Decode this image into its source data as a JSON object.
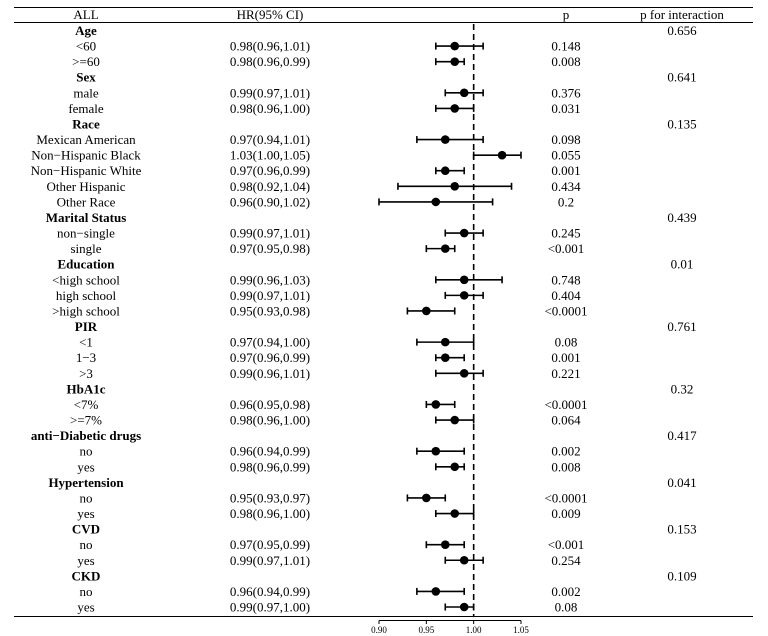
{
  "chart_data": {
    "type": "forest",
    "columns": {
      "subgroup": "ALL",
      "hr": "HR(95% CI)",
      "p": "p",
      "p_interaction": "p for interaction"
    },
    "x_ticks": [
      0.9,
      0.95,
      1.0,
      1.05
    ],
    "x_tick_labels": [
      "0.90",
      "0.95",
      "1.00",
      "1.05"
    ],
    "xlim": [
      0.9,
      1.05
    ],
    "reference_line": 1.0,
    "rows": [
      {
        "kind": "group",
        "label": "Age",
        "p_interaction": "0.656"
      },
      {
        "kind": "item",
        "label": "<60",
        "hr": 0.98,
        "lo": 0.96,
        "hi": 1.01,
        "hr_text": "0.98(0.96,1.01)",
        "p": "0.148"
      },
      {
        "kind": "item",
        "label": ">=60",
        "hr": 0.98,
        "lo": 0.96,
        "hi": 0.99,
        "hr_text": "0.98(0.96,0.99)",
        "p": "0.008"
      },
      {
        "kind": "group",
        "label": "Sex",
        "p_interaction": "0.641"
      },
      {
        "kind": "item",
        "label": "male",
        "hr": 0.99,
        "lo": 0.97,
        "hi": 1.01,
        "hr_text": "0.99(0.97,1.01)",
        "p": "0.376"
      },
      {
        "kind": "item",
        "label": "female",
        "hr": 0.98,
        "lo": 0.96,
        "hi": 1.0,
        "hr_text": "0.98(0.96,1.00)",
        "p": "0.031"
      },
      {
        "kind": "group",
        "label": "Race",
        "p_interaction": "0.135"
      },
      {
        "kind": "item",
        "label": "Mexican American",
        "hr": 0.97,
        "lo": 0.94,
        "hi": 1.01,
        "hr_text": "0.97(0.94,1.01)",
        "p": "0.098"
      },
      {
        "kind": "item",
        "label": "Non−Hispanic Black",
        "hr": 1.03,
        "lo": 1.0,
        "hi": 1.05,
        "hr_text": "1.03(1.00,1.05)",
        "p": "0.055"
      },
      {
        "kind": "item",
        "label": "Non−Hispanic White",
        "hr": 0.97,
        "lo": 0.96,
        "hi": 0.99,
        "hr_text": "0.97(0.96,0.99)",
        "p": "0.001"
      },
      {
        "kind": "item",
        "label": "Other Hispanic",
        "hr": 0.98,
        "lo": 0.92,
        "hi": 1.04,
        "hr_text": "0.98(0.92,1.04)",
        "p": "0.434"
      },
      {
        "kind": "item",
        "label": "Other Race",
        "hr": 0.96,
        "lo": 0.9,
        "hi": 1.02,
        "hr_text": "0.96(0.90,1.02)",
        "p": "0.2"
      },
      {
        "kind": "group",
        "label": "Marital Status",
        "p_interaction": "0.439"
      },
      {
        "kind": "item",
        "label": "non−single",
        "hr": 0.99,
        "lo": 0.97,
        "hi": 1.01,
        "hr_text": "0.99(0.97,1.01)",
        "p": "0.245"
      },
      {
        "kind": "item",
        "label": "single",
        "hr": 0.97,
        "lo": 0.95,
        "hi": 0.98,
        "hr_text": "0.97(0.95,0.98)",
        "p": "<0.001"
      },
      {
        "kind": "group",
        "label": "Education",
        "p_interaction": "0.01"
      },
      {
        "kind": "item",
        "label": "<high school",
        "hr": 0.99,
        "lo": 0.96,
        "hi": 1.03,
        "hr_text": "0.99(0.96,1.03)",
        "p": "0.748"
      },
      {
        "kind": "item",
        "label": "high school",
        "hr": 0.99,
        "lo": 0.97,
        "hi": 1.01,
        "hr_text": "0.99(0.97,1.01)",
        "p": "0.404"
      },
      {
        "kind": "item",
        "label": ">high school",
        "hr": 0.95,
        "lo": 0.93,
        "hi": 0.98,
        "hr_text": "0.95(0.93,0.98)",
        "p": "<0.0001"
      },
      {
        "kind": "group",
        "label": "PIR",
        "p_interaction": "0.761"
      },
      {
        "kind": "item",
        "label": "<1",
        "hr": 0.97,
        "lo": 0.94,
        "hi": 1.0,
        "hr_text": "0.97(0.94,1.00)",
        "p": "0.08"
      },
      {
        "kind": "item",
        "label": "1−3",
        "hr": 0.97,
        "lo": 0.96,
        "hi": 0.99,
        "hr_text": "0.97(0.96,0.99)",
        "p": "0.001"
      },
      {
        "kind": "item",
        "label": ">3",
        "hr": 0.99,
        "lo": 0.96,
        "hi": 1.01,
        "hr_text": "0.99(0.96,1.01)",
        "p": "0.221"
      },
      {
        "kind": "group",
        "label": "HbA1c",
        "p_interaction": "0.32"
      },
      {
        "kind": "item",
        "label": "<7%",
        "hr": 0.96,
        "lo": 0.95,
        "hi": 0.98,
        "hr_text": "0.96(0.95,0.98)",
        "p": "<0.0001"
      },
      {
        "kind": "item",
        "label": ">=7%",
        "hr": 0.98,
        "lo": 0.96,
        "hi": 1.0,
        "hr_text": "0.98(0.96,1.00)",
        "p": "0.064"
      },
      {
        "kind": "group",
        "label": "anti−Diabetic drugs",
        "p_interaction": "0.417"
      },
      {
        "kind": "item",
        "label": "no",
        "hr": 0.96,
        "lo": 0.94,
        "hi": 0.99,
        "hr_text": "0.96(0.94,0.99)",
        "p": "0.002"
      },
      {
        "kind": "item",
        "label": "yes",
        "hr": 0.98,
        "lo": 0.96,
        "hi": 0.99,
        "hr_text": "0.98(0.96,0.99)",
        "p": "0.008"
      },
      {
        "kind": "group",
        "label": "Hypertension",
        "p_interaction": "0.041"
      },
      {
        "kind": "item",
        "label": "no",
        "hr": 0.95,
        "lo": 0.93,
        "hi": 0.97,
        "hr_text": "0.95(0.93,0.97)",
        "p": "<0.0001"
      },
      {
        "kind": "item",
        "label": "yes",
        "hr": 0.98,
        "lo": 0.96,
        "hi": 1.0,
        "hr_text": "0.98(0.96,1.00)",
        "p": "0.009"
      },
      {
        "kind": "group",
        "label": "CVD",
        "p_interaction": "0.153"
      },
      {
        "kind": "item",
        "label": "no",
        "hr": 0.97,
        "lo": 0.95,
        "hi": 0.99,
        "hr_text": "0.97(0.95,0.99)",
        "p": "<0.001"
      },
      {
        "kind": "item",
        "label": "yes",
        "hr": 0.99,
        "lo": 0.97,
        "hi": 1.01,
        "hr_text": "0.99(0.97,1.01)",
        "p": "0.254"
      },
      {
        "kind": "group",
        "label": "CKD",
        "p_interaction": "0.109"
      },
      {
        "kind": "item",
        "label": "no",
        "hr": 0.96,
        "lo": 0.94,
        "hi": 0.99,
        "hr_text": "0.96(0.94,0.99)",
        "p": "0.002"
      },
      {
        "kind": "item",
        "label": "yes",
        "hr": 0.99,
        "lo": 0.97,
        "hi": 1.0,
        "hr_text": "0.99(0.97,1.00)",
        "p": "0.08"
      }
    ]
  }
}
